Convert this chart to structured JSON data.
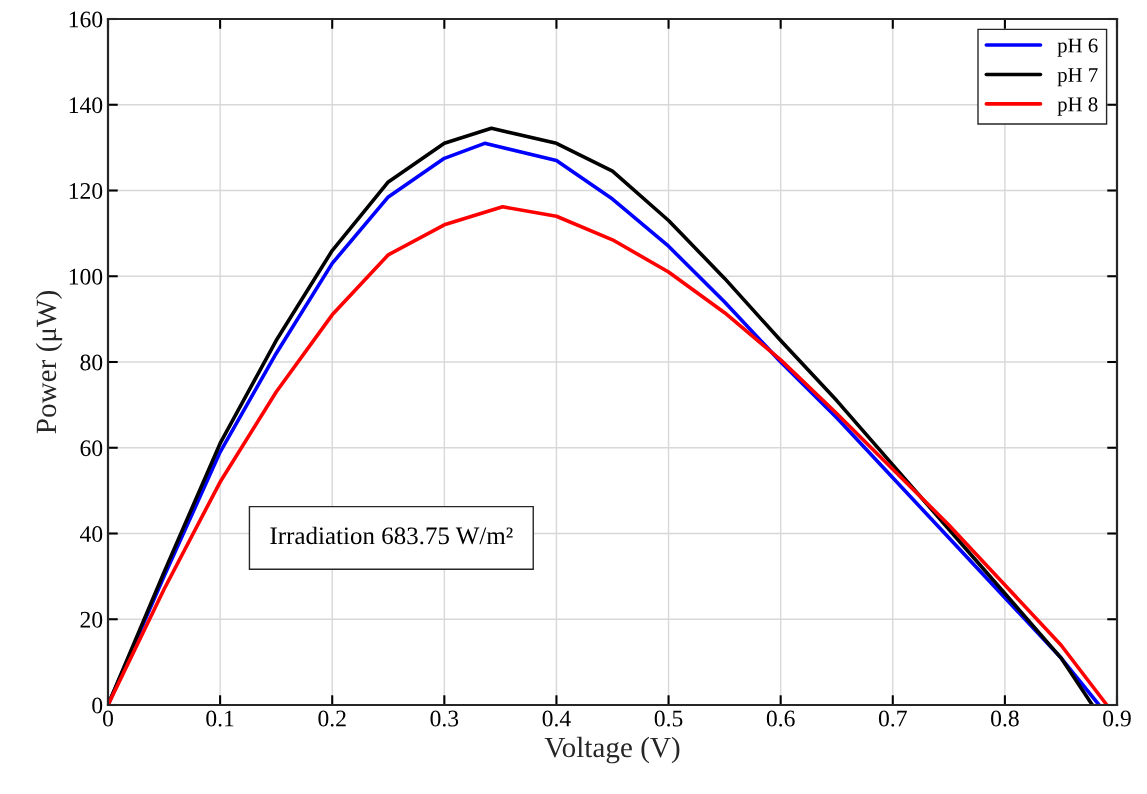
{
  "chart_data": {
    "type": "line",
    "xlabel": "Voltage (V)",
    "ylabel": "Power (μW)",
    "xlim": [
      0,
      0.9
    ],
    "ylim": [
      0,
      160
    ],
    "xticks": [
      0,
      0.1,
      0.2,
      0.3,
      0.4,
      0.5,
      0.6,
      0.7,
      0.8,
      0.9
    ],
    "yticks": [
      0,
      20,
      40,
      60,
      80,
      100,
      120,
      140,
      160
    ],
    "grid": true,
    "legend": "top right",
    "x": [
      0,
      0.05,
      0.1,
      0.15,
      0.2,
      0.25,
      0.3,
      0.336,
      0.342,
      0.352,
      0.4,
      0.45,
      0.5,
      0.55,
      0.6,
      0.65,
      0.7,
      0.75,
      0.8,
      0.85,
      0.878,
      0.884,
      0.891
    ],
    "series": [
      {
        "name": "pH 6",
        "color": "#0000ff",
        "values": [
          0,
          30,
          59,
          82,
          103,
          118.5,
          127.5,
          131,
          null,
          null,
          127,
          118,
          107,
          94,
          80,
          67,
          53,
          39,
          25,
          11,
          null,
          0,
          null
        ]
      },
      {
        "name": "pH 7",
        "color": "#000000",
        "values": [
          0,
          31,
          61,
          85,
          106,
          122,
          131,
          null,
          134.5,
          null,
          131,
          124.5,
          113,
          99.5,
          85,
          71,
          56,
          41,
          26,
          11,
          0,
          null,
          null
        ]
      },
      {
        "name": "pH 8",
        "color": "#ff0000",
        "values": [
          0,
          27,
          52,
          73,
          91,
          105,
          112,
          null,
          null,
          116.2,
          114,
          108.5,
          101,
          91.5,
          80.5,
          68,
          55,
          42,
          28,
          14,
          null,
          null,
          0
        ]
      }
    ],
    "annotations": [
      "Irradiation 683.75 W/m²"
    ]
  }
}
